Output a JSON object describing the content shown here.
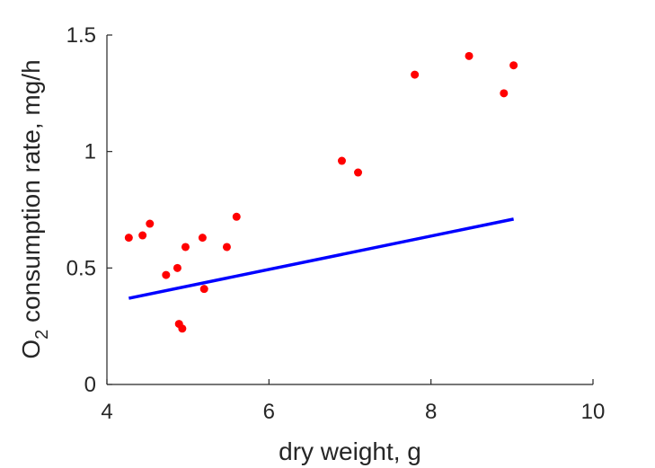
{
  "chart_data": {
    "type": "scatter",
    "xlabel": "dry weight, g",
    "ylabel_main": "O",
    "ylabel_subscript": "2",
    "ylabel_rest": " consumption rate, mg/h",
    "xlim": [
      4,
      10
    ],
    "ylim": [
      0,
      1.5
    ],
    "x_ticks": [
      4,
      6,
      8,
      10
    ],
    "x_tick_labels": [
      "4",
      "6",
      "8",
      "10"
    ],
    "y_ticks": [
      0,
      0.5,
      1,
      1.5
    ],
    "y_tick_labels": [
      "0",
      "0.5",
      "1",
      "1.5"
    ],
    "grid": false,
    "points": {
      "color": "#ff0000",
      "x": [
        4.27,
        4.44,
        4.53,
        4.73,
        4.87,
        4.89,
        4.93,
        4.97,
        5.18,
        5.2,
        5.48,
        5.6,
        6.9,
        7.1,
        7.8,
        8.47,
        8.9,
        9.02
      ],
      "y": [
        0.63,
        0.64,
        0.69,
        0.47,
        0.5,
        0.26,
        0.24,
        0.59,
        0.63,
        0.41,
        0.59,
        0.72,
        0.96,
        0.91,
        1.33,
        1.41,
        1.25,
        1.37
      ]
    },
    "fit_line": {
      "color": "#0000ff",
      "x": [
        4.27,
        9.02
      ],
      "y": [
        0.37,
        0.71
      ]
    }
  }
}
